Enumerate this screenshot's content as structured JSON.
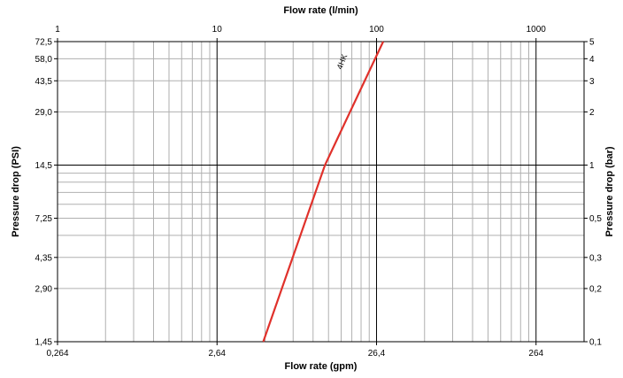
{
  "chart_data": {
    "type": "line",
    "title": "",
    "scale": "log-log",
    "grid": true,
    "legend": "none",
    "x_top_axis": {
      "label": "Flow rate (l/min)",
      "ticks": [
        {
          "value": 1,
          "label": "1"
        },
        {
          "value": 10,
          "label": "10"
        },
        {
          "value": 100,
          "label": "100"
        },
        {
          "value": 1000,
          "label": "1000"
        }
      ]
    },
    "x_bottom_axis": {
      "label": "Flow rate (gpm)",
      "ticks": [
        {
          "value": 1,
          "label": "0,264"
        },
        {
          "value": 10,
          "label": "2,64"
        },
        {
          "value": 100,
          "label": "26,4"
        },
        {
          "value": 1000,
          "label": "264"
        }
      ]
    },
    "y_left_axis": {
      "label": "Pressure drop (PSI)",
      "ticks": [
        {
          "value": 0.1,
          "label": "1,45"
        },
        {
          "value": 0.2,
          "label": "2,90"
        },
        {
          "value": 0.3,
          "label": "4,35"
        },
        {
          "value": 0.5,
          "label": "7,25"
        },
        {
          "value": 1,
          "label": "14,5"
        },
        {
          "value": 2,
          "label": "29,0"
        },
        {
          "value": 3,
          "label": "43,5"
        },
        {
          "value": 4,
          "label": "58,0"
        },
        {
          "value": 5,
          "label": "72,5"
        }
      ]
    },
    "y_right_axis": {
      "label": "Pressure drop (bar)",
      "ticks": [
        {
          "value": 0.1,
          "label": "0,1"
        },
        {
          "value": 0.2,
          "label": "0,2"
        },
        {
          "value": 0.3,
          "label": "0,3"
        },
        {
          "value": 0.5,
          "label": "0,5"
        },
        {
          "value": 1,
          "label": "1"
        },
        {
          "value": 2,
          "label": "2"
        },
        {
          "value": 3,
          "label": "3"
        },
        {
          "value": 4,
          "label": "4"
        },
        {
          "value": 5,
          "label": "5"
        }
      ]
    },
    "xlim": [
      1,
      2000
    ],
    "ylim": [
      0.1,
      5
    ],
    "series": [
      {
        "name": "4HK",
        "color": "#e0312b",
        "x": [
          19.5,
          47.5,
          110
        ],
        "y": [
          0.1,
          1.0,
          5.0
        ]
      }
    ],
    "colors": {
      "major_grid": "#000000",
      "minor_grid": "#b0b0b0",
      "frame": "#000000"
    }
  }
}
